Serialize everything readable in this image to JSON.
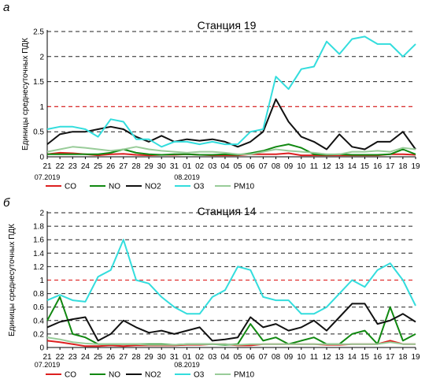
{
  "figure": {
    "panel_labels": [
      "а",
      "б"
    ]
  },
  "chart_data": [
    {
      "type": "line",
      "title": "Станция 19",
      "ylabel": "Единицы среднесуточных ПДК",
      "xlabel": "",
      "ylim": [
        0,
        2.5
      ],
      "yticks": [
        "0",
        "0.5",
        "1",
        "1.5",
        "2",
        "2.5"
      ],
      "y_tick_values": [
        0,
        0.5,
        1,
        1.5,
        2,
        2.5
      ],
      "grid": "horizontal dashed at ticks, red dashed at 1 (ПДК)",
      "threshold": 1,
      "categories": [
        "21",
        "22",
        "23",
        "24",
        "25",
        "26",
        "27",
        "28",
        "29",
        "30",
        "31",
        "01",
        "02",
        "03",
        "04",
        "05",
        "06",
        "07",
        "08",
        "09",
        "10",
        "11",
        "12",
        "13",
        "14",
        "15",
        "16",
        "17",
        "18",
        "19"
      ],
      "month_labels": [
        {
          "text": "07.2019",
          "at_index": 0
        },
        {
          "text": "08.2019",
          "at_index": 11
        }
      ],
      "legend_placement": "bottom",
      "series": [
        {
          "name": "CO",
          "color": "#dd2020",
          "values": [
            0.05,
            0.08,
            0.07,
            0.05,
            0.03,
            0.05,
            0.06,
            0.04,
            0.03,
            0.04,
            0.04,
            0.05,
            0.04,
            0.03,
            0.03,
            0.03,
            0.05,
            0.05,
            0.05,
            0.07,
            0.03,
            0.03,
            0.03,
            0.03,
            0.03,
            0.03,
            0.03,
            0.05,
            0.05,
            0.04
          ]
        },
        {
          "name": "NO",
          "color": "#118811",
          "values": [
            0.05,
            0.05,
            0.05,
            0.05,
            0.05,
            0.08,
            0.15,
            0.08,
            0.05,
            0.04,
            0.05,
            0.05,
            0.04,
            0.04,
            0.05,
            0.04,
            0.07,
            0.12,
            0.2,
            0.25,
            0.18,
            0.05,
            0.04,
            0.05,
            0.04,
            0.04,
            0.04,
            0.05,
            0.15,
            0.05
          ]
        },
        {
          "name": "NO2",
          "color": "#111111",
          "values": [
            0.25,
            0.45,
            0.5,
            0.5,
            0.55,
            0.6,
            0.55,
            0.4,
            0.3,
            0.42,
            0.3,
            0.35,
            0.32,
            0.35,
            0.3,
            0.2,
            0.3,
            0.5,
            1.15,
            0.7,
            0.4,
            0.3,
            0.15,
            0.45,
            0.2,
            0.15,
            0.3,
            0.3,
            0.5,
            0.15
          ]
        },
        {
          "name": "O3",
          "color": "#33dddd",
          "values": [
            0.55,
            0.6,
            0.6,
            0.55,
            0.4,
            0.75,
            0.7,
            0.35,
            0.35,
            0.2,
            0.3,
            0.3,
            0.25,
            0.3,
            0.25,
            0.25,
            0.5,
            0.55,
            1.6,
            1.35,
            1.75,
            1.8,
            2.3,
            2.05,
            2.35,
            2.4,
            2.25,
            2.25,
            2.0,
            2.25
          ]
        },
        {
          "name": "PM10",
          "color": "#99cc99",
          "values": [
            0.1,
            0.15,
            0.2,
            0.18,
            0.15,
            0.12,
            0.15,
            0.2,
            0.15,
            0.12,
            0.1,
            0.08,
            0.1,
            0.1,
            0.08,
            0.05,
            0.05,
            0.1,
            0.15,
            0.12,
            0.1,
            0.08,
            0.05,
            0.05,
            0.1,
            0.1,
            0.12,
            0.1,
            0.18,
            0.15
          ]
        }
      ]
    },
    {
      "type": "line",
      "title": "Станция 14",
      "ylabel": "Единицы среднесуточных ПДК",
      "xlabel": "",
      "ylim": [
        0,
        2
      ],
      "yticks": [
        "0",
        "0.2",
        "0.4",
        "0.6",
        "0.8",
        "1",
        "1.2",
        "1.4",
        "1.6",
        "1.8",
        "2"
      ],
      "y_tick_values": [
        0,
        0.2,
        0.4,
        0.6,
        0.8,
        1,
        1.2,
        1.4,
        1.6,
        1.8,
        2
      ],
      "grid": "horizontal dashed at ticks, red dashed at 1 (ПДК)",
      "threshold": 1,
      "categories": [
        "21",
        "22",
        "23",
        "24",
        "25",
        "26",
        "27",
        "28",
        "29",
        "30",
        "31",
        "01",
        "02",
        "03",
        "04",
        "05",
        "06",
        "07",
        "08",
        "09",
        "10",
        "11",
        "12",
        "13",
        "14",
        "15",
        "16",
        "17",
        "18",
        "19"
      ],
      "month_labels": [
        {
          "text": "07.2019",
          "at_index": 0
        },
        {
          "text": "08.2019",
          "at_index": 11
        }
      ],
      "legend_placement": "bottom",
      "series": [
        {
          "name": "CO",
          "color": "#dd2020",
          "values": [
            0.1,
            0.08,
            0.05,
            0.02,
            0.02,
            0.03,
            0.02,
            0.03,
            0.03,
            0.03,
            0.03,
            0.04,
            0.04,
            0.05,
            0.05,
            0.03,
            0.03,
            0.05,
            0.05,
            0.05,
            0.05,
            0.05,
            0.04,
            0.04,
            0.05,
            0.05,
            0.05,
            0.1,
            0.05,
            0.05
          ]
        },
        {
          "name": "NO",
          "color": "#118811",
          "values": [
            0.4,
            0.75,
            0.2,
            0.15,
            0.05,
            0.05,
            0.05,
            0.05,
            0.05,
            0.05,
            0.04,
            0.05,
            0.05,
            0.05,
            0.04,
            0.05,
            0.35,
            0.1,
            0.15,
            0.05,
            0.1,
            0.15,
            0.05,
            0.05,
            0.2,
            0.25,
            0.05,
            0.6,
            0.1,
            0.2
          ]
        },
        {
          "name": "NO2",
          "color": "#111111",
          "values": [
            0.3,
            0.38,
            0.42,
            0.45,
            0.1,
            0.2,
            0.4,
            0.3,
            0.22,
            0.25,
            0.2,
            0.25,
            0.3,
            0.1,
            0.12,
            0.15,
            0.45,
            0.3,
            0.35,
            0.25,
            0.3,
            0.4,
            0.25,
            0.45,
            0.65,
            0.65,
            0.35,
            0.4,
            0.5,
            0.38
          ]
        },
        {
          "name": "O3",
          "color": "#33dddd",
          "values": [
            0.7,
            0.78,
            0.7,
            0.68,
            1.05,
            1.15,
            1.6,
            1.0,
            0.95,
            0.75,
            0.6,
            0.5,
            0.5,
            0.75,
            0.85,
            1.2,
            1.15,
            0.75,
            0.7,
            0.7,
            0.5,
            0.5,
            0.6,
            0.8,
            1.0,
            0.9,
            1.15,
            1.25,
            1.0,
            0.62
          ]
        },
        {
          "name": "PM10",
          "color": "#99cc99",
          "values": [
            0.15,
            0.12,
            0.08,
            0.06,
            0.05,
            0.05,
            0.05,
            0.05,
            0.04,
            0.04,
            0.04,
            0.05,
            0.05,
            0.05,
            0.05,
            0.04,
            0.05,
            0.05,
            0.05,
            0.05,
            0.05,
            0.05,
            0.05,
            0.05,
            0.05,
            0.05,
            0.05,
            0.08,
            0.05,
            0.05
          ]
        }
      ]
    }
  ]
}
